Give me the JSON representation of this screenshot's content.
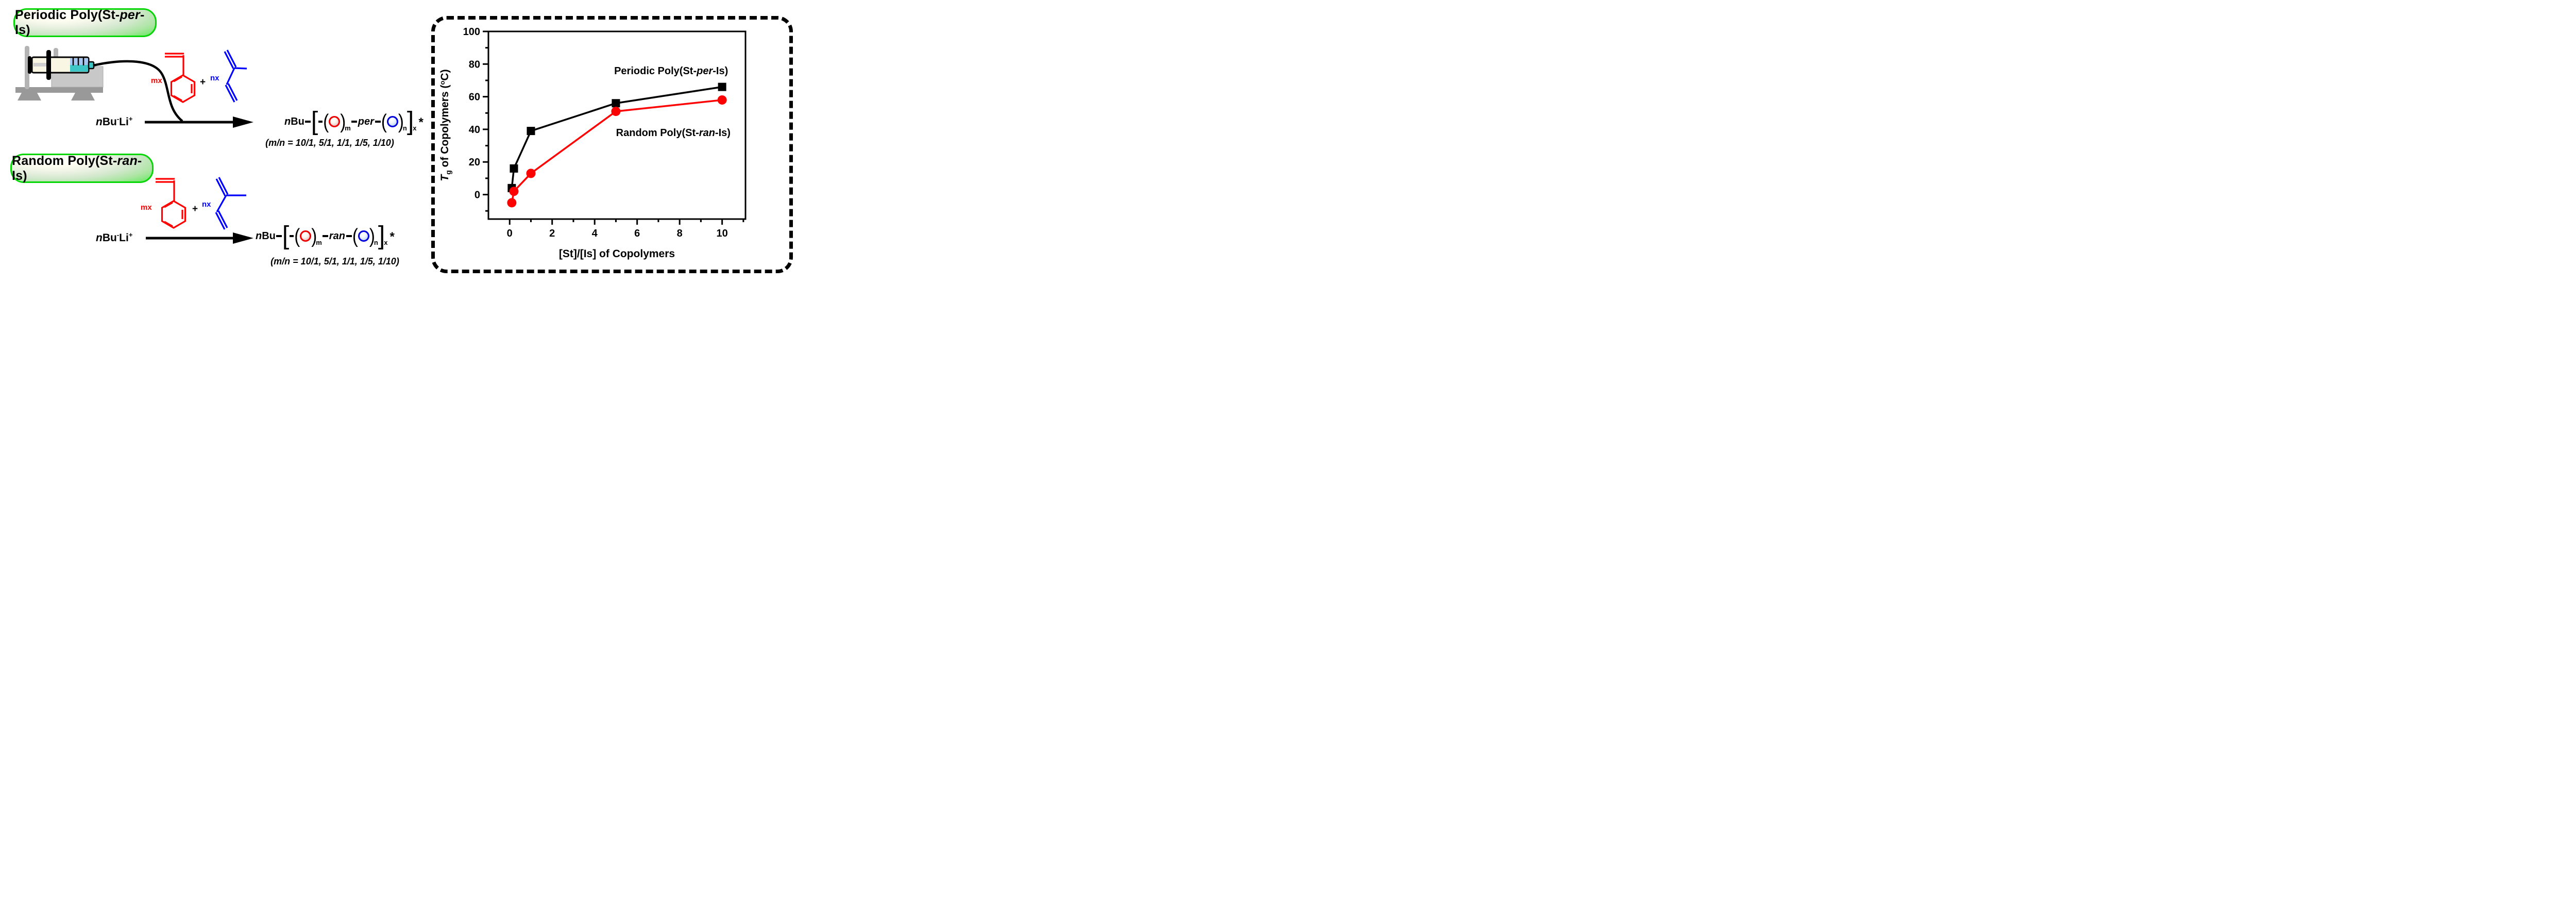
{
  "scheme_periodic": {
    "label_html": "Periodic Poly(St-<i>per</i>-Is)",
    "monomer_count_st": "mx",
    "plus": "+",
    "monomer_count_is": "nx",
    "initiator_html": "<i>n</i>Bu<sup>-</sup>Li<sup>+</sup>",
    "product": {
      "prefix_html": "<i>n</i>Bu",
      "open_bracket": "[",
      "open_paren": "(",
      "sub_m": "m",
      "linkage_html": "<i>per</i>",
      "close_paren": ")",
      "sub_n": "n",
      "close_bracket": "]",
      "sub_x": "x",
      "star": "*"
    },
    "ratio_note": "(m/n = 10/1, 5/1, 1/1, 1/5, 1/10)"
  },
  "scheme_random": {
    "label_html": "Random Poly(St-<i>ran</i>-Is)",
    "monomer_count_st": "mx",
    "plus": "+",
    "monomer_count_is": "nx",
    "initiator_html": "<i>n</i>Bu<sup>-</sup>Li<sup>+</sup>",
    "product": {
      "prefix_html": "<i>n</i>Bu",
      "open_bracket": "[",
      "open_paren": "(",
      "sub_m": "m",
      "linkage_html": "<i>ran</i>",
      "close_paren": ")",
      "sub_n": "n",
      "close_bracket": "]",
      "sub_x": "x",
      "star": "*"
    },
    "ratio_note": "(m/n = 10/1, 5/1, 1/1, 1/5, 1/10)"
  },
  "chart_data": {
    "type": "line",
    "title": "",
    "xlabel": "[St]/[Is] of Copolymers",
    "ylabel": "Tg of Copolymers (°C)",
    "ylabel_parts": [
      {
        "t": "T",
        "i": 1
      },
      {
        "t": "g",
        "sub": 1
      },
      {
        "t": " of Copolymers ("
      },
      {
        "t": "o",
        "sup": 1
      },
      {
        "t": "C)"
      }
    ],
    "xlim": [
      -1,
      11.1
    ],
    "ylim": [
      -15,
      100
    ],
    "x_ticks": [
      0,
      2,
      4,
      6,
      8,
      10
    ],
    "x_minor_ticks": [
      1,
      3,
      5,
      7,
      9,
      11
    ],
    "y_ticks": [
      0,
      20,
      40,
      60,
      80,
      100
    ],
    "y_minor_ticks": [
      -10,
      10,
      30,
      50,
      70,
      90
    ],
    "grid": false,
    "legend_position": "inside",
    "x": [
      0.1,
      0.2,
      1,
      5,
      10
    ],
    "series": [
      {
        "name": "Periodic Poly(St-per-Is)",
        "label_parts": [
          {
            "t": "Periodic Poly(St-"
          },
          {
            "t": "per",
            "i": 1
          },
          {
            "t": "-Is)"
          }
        ],
        "color": "#000000",
        "marker": "square",
        "values": [
          4,
          16,
          39,
          56,
          66
        ],
        "label_pos": [
          7.6,
          76
        ]
      },
      {
        "name": "Random Poly(St-ran-Is)",
        "label_parts": [
          {
            "t": "Random Poly(St-"
          },
          {
            "t": "ran",
            "i": 1
          },
          {
            "t": "-Is)"
          }
        ],
        "color": "#ff0000",
        "marker": "circle",
        "values": [
          -5,
          2,
          13,
          51,
          58
        ],
        "label_pos": [
          7.7,
          38
        ]
      }
    ]
  }
}
